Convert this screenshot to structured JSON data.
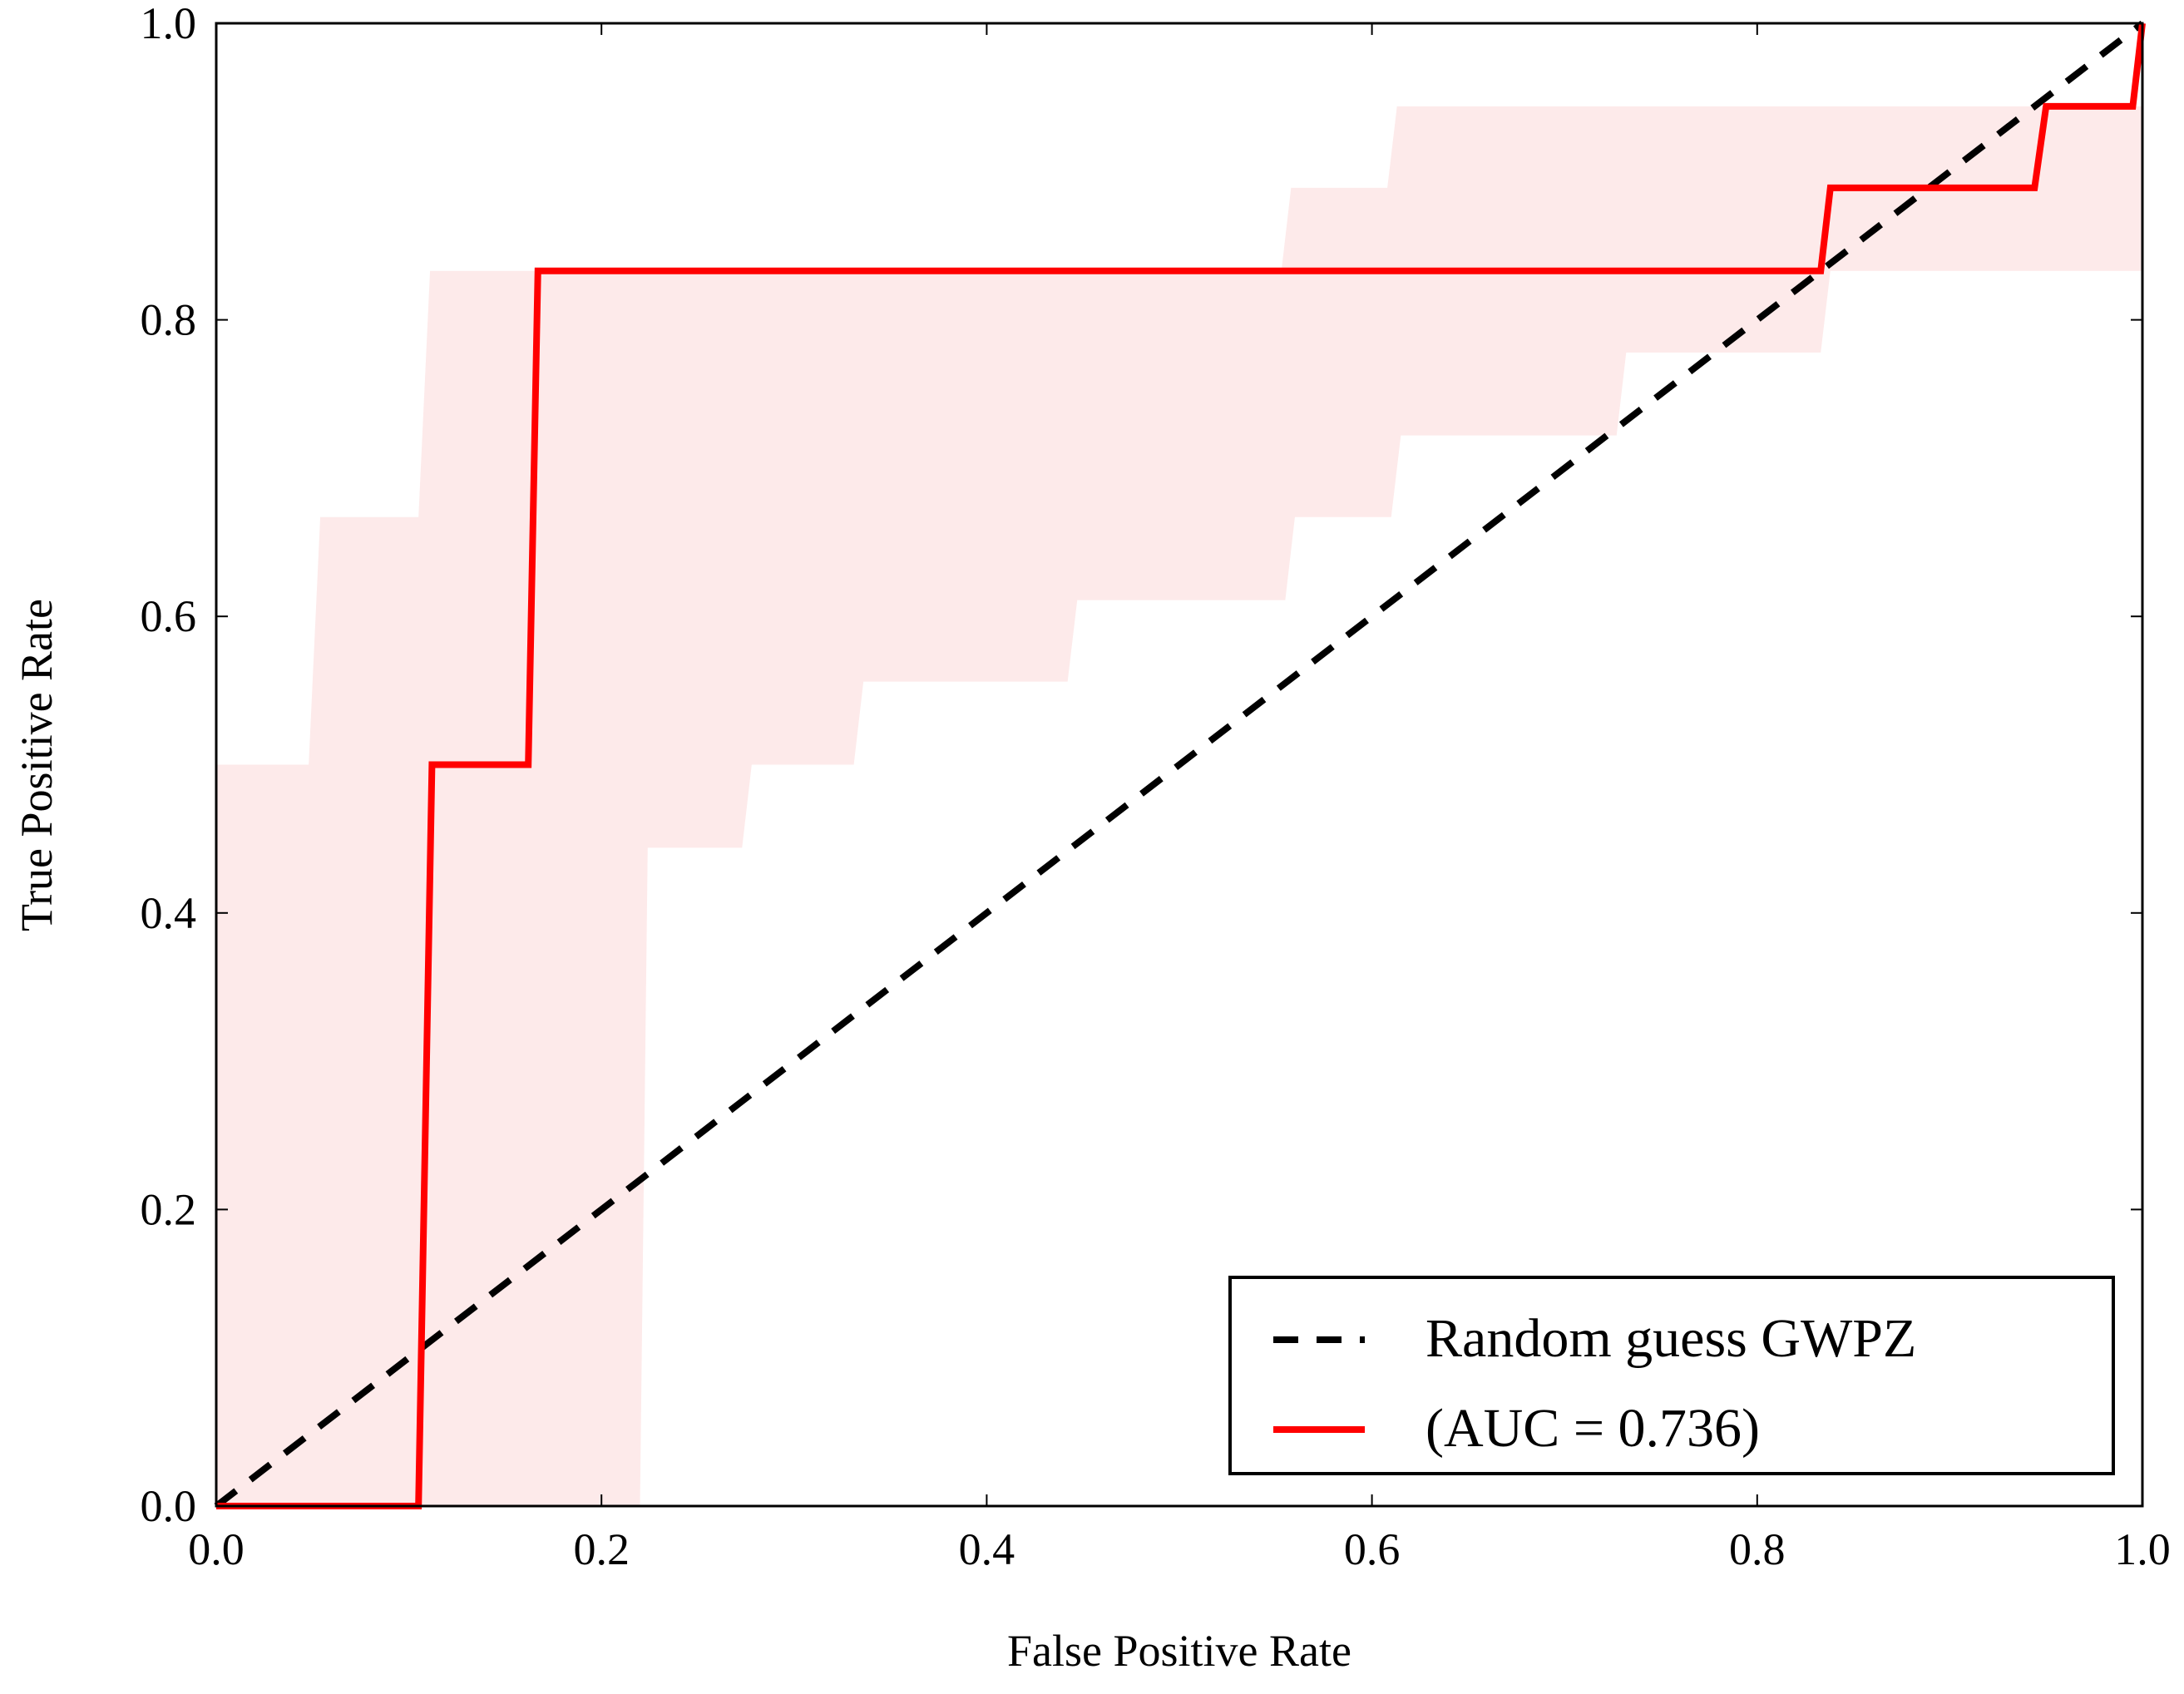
{
  "chart_data": {
    "type": "line",
    "xlabel": "False Positive Rate",
    "ylabel": "True Positive Rate",
    "xlim": [
      0,
      1
    ],
    "ylim": [
      0,
      1
    ],
    "xticks": [
      {
        "value": 0,
        "label": "0.0"
      },
      0.2,
      0.4,
      0.6,
      0.8,
      {
        "value": 1,
        "label": "1.0"
      }
    ],
    "yticks": [
      {
        "value": 0,
        "label": "0.0"
      },
      0.2,
      0.4,
      0.6,
      0.8,
      {
        "value": 1,
        "label": "1.0"
      }
    ],
    "legend": "lower right",
    "band": {
      "color": "#fdeaea",
      "upper": {
        "x": [
          0,
          0.048,
          0.054,
          0.105,
          0.111,
          0.553,
          0.558,
          0.608,
          0.613,
          1
        ],
        "y": [
          0.5,
          0.5,
          0.667,
          0.667,
          0.833,
          0.833,
          0.889,
          0.889,
          0.944,
          0.944
        ]
      },
      "lower": {
        "x": [
          0,
          0.22,
          0.224,
          0.273,
          0.278,
          0.331,
          0.336,
          0.442,
          0.447,
          0.555,
          0.56,
          0.61,
          0.615,
          0.727,
          0.732,
          0.833,
          0.838,
          1
        ],
        "y": [
          0,
          0,
          0.444,
          0.444,
          0.5,
          0.5,
          0.556,
          0.556,
          0.611,
          0.611,
          0.667,
          0.667,
          0.722,
          0.722,
          0.778,
          0.778,
          0.833,
          0.833
        ]
      }
    },
    "series": [
      {
        "name": "Random guess GWPZ",
        "color": "#000000",
        "dashed": true,
        "x": [
          0,
          1
        ],
        "values": [
          0,
          1
        ]
      },
      {
        "name": "(AUC = 0.736)",
        "color": "#ff0000",
        "dashed": false,
        "x": [
          0,
          0.105,
          0.112,
          0.162,
          0.167,
          0.833,
          0.838,
          0.944,
          0.95,
          0.995,
          1
        ],
        "values": [
          0,
          0,
          0.5,
          0.5,
          0.833,
          0.833,
          0.889,
          0.889,
          0.944,
          0.944,
          1
        ]
      }
    ]
  }
}
